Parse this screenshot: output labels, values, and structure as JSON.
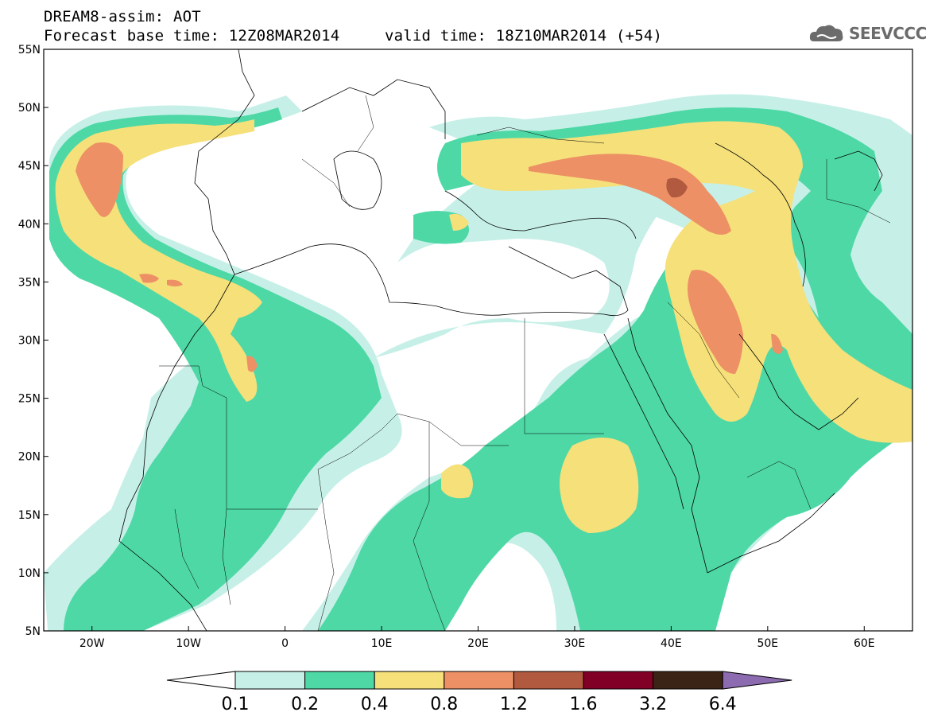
{
  "header": {
    "title": "DREAM8-assim: AOT",
    "base_time": "Forecast base time: 12Z08MAR2014",
    "valid_time": "valid time: 18Z10MAR2014 (+54)",
    "logo_text": "SEEVCCC"
  },
  "axes": {
    "lat_labels": [
      "55N",
      "50N",
      "45N",
      "40N",
      "35N",
      "30N",
      "25N",
      "20N",
      "15N",
      "10N",
      "5N"
    ],
    "lat_values": [
      55,
      50,
      45,
      40,
      35,
      30,
      25,
      20,
      15,
      10,
      5
    ],
    "lon_labels": [
      "20W",
      "10W",
      "0",
      "10E",
      "20E",
      "30E",
      "40E",
      "50E",
      "60E"
    ],
    "lon_values": [
      -20,
      -10,
      0,
      10,
      20,
      30,
      40,
      50,
      60
    ],
    "lon_range": [
      -25,
      65
    ],
    "lat_range": [
      5,
      55
    ]
  },
  "legend": {
    "labels": [
      "0.1",
      "0.2",
      "0.4",
      "0.8",
      "1.2",
      "1.6",
      "3.2",
      "6.4"
    ],
    "colors": [
      "#ffffff",
      "#c6f0e7",
      "#4ed8a6",
      "#f5e07a",
      "#ed9065",
      "#b25a40",
      "#800026",
      "#3b2415",
      "#8c6bb1"
    ]
  },
  "colors": {
    "lvl1": "#c6f0e7",
    "lvl2": "#4ed8a6",
    "lvl3": "#f5e07a",
    "lvl4": "#ed9065",
    "lvl5": "#b25a40"
  }
}
